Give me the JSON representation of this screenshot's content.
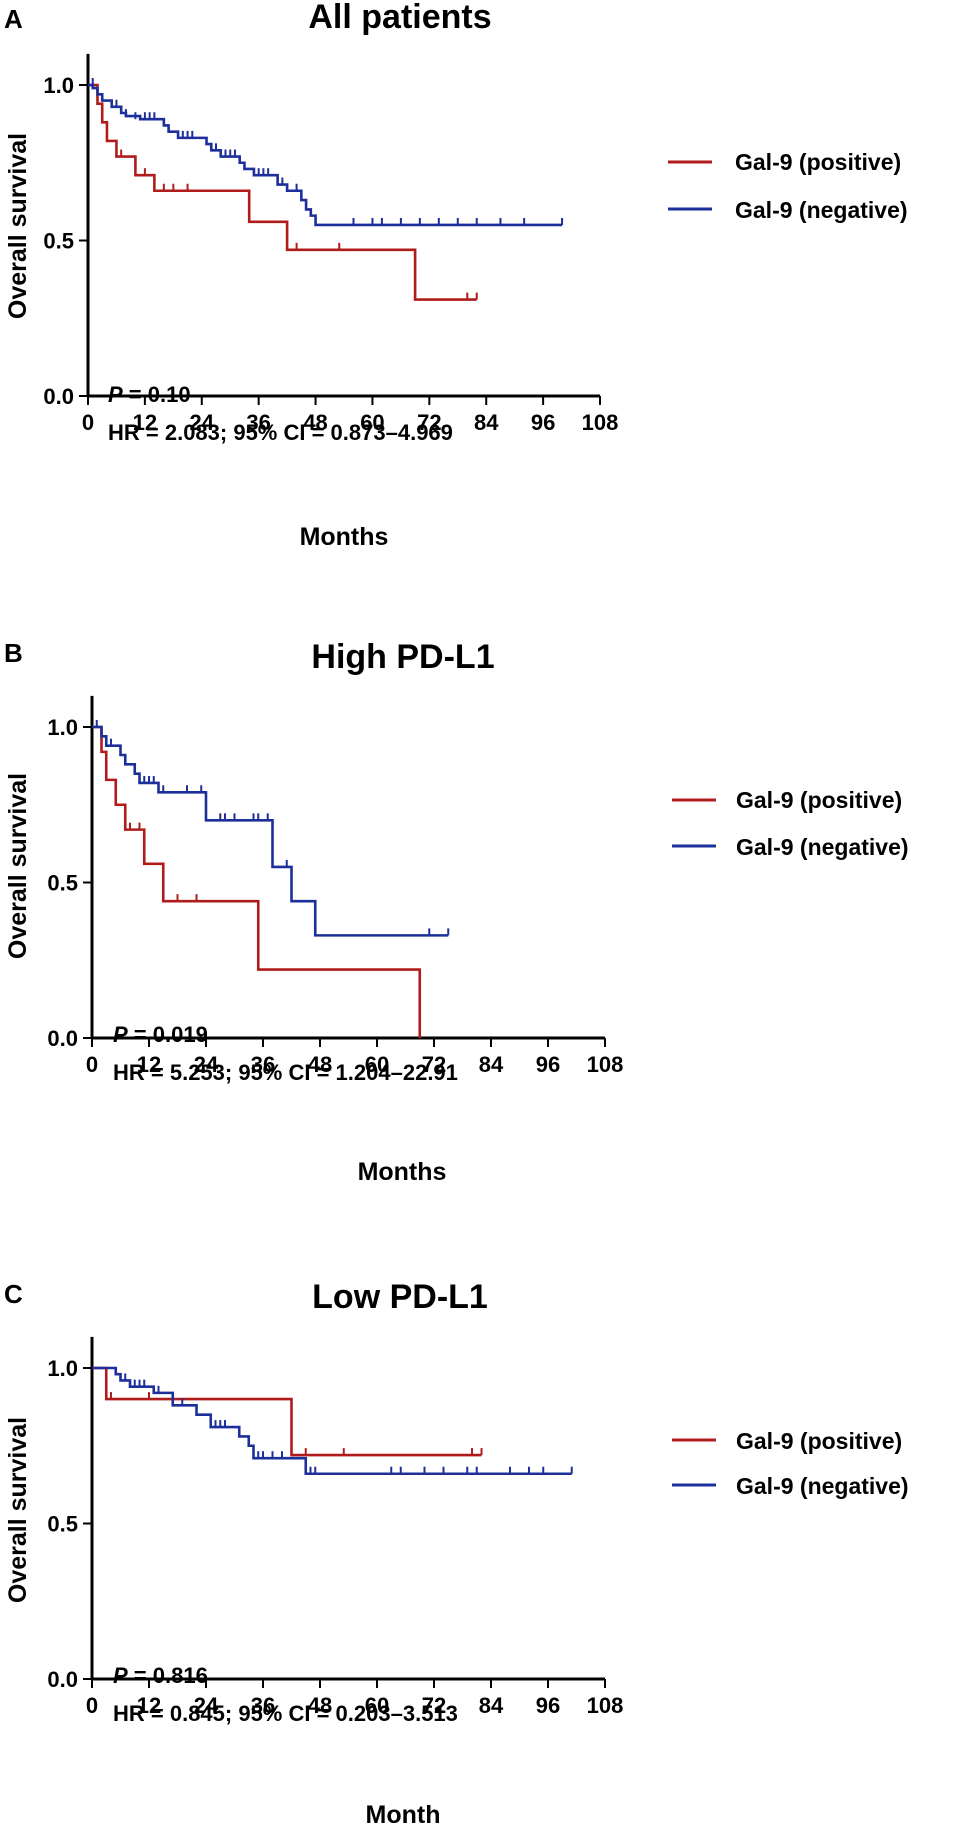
{
  "colors": {
    "positive": "#b01c1c",
    "negative": "#1c2f9a",
    "axis": "#000000"
  },
  "chart_data": [
    {
      "type": "line",
      "panel": "A",
      "title": "All patients",
      "xlabel": "Months",
      "ylabel": "Overall survival",
      "xlim": [
        0,
        108
      ],
      "ylim": [
        0,
        1.1
      ],
      "xticks": [
        "0",
        "12",
        "24",
        "36",
        "48",
        "60",
        "72",
        "84",
        "96",
        "108"
      ],
      "yticks": [
        "0.0",
        "0.5",
        "1.0"
      ],
      "p_prefix": "P",
      "p_value": " = 0.10",
      "hr_text": "HR = 2.083; 95% CI = 0.873–4.969",
      "series": [
        {
          "name": "Gal-9 (positive)",
          "color": "#b01c1c",
          "steps": [
            [
              0,
              1.0
            ],
            [
              2,
              0.94
            ],
            [
              3,
              0.88
            ],
            [
              4,
              0.82
            ],
            [
              6,
              0.77
            ],
            [
              10,
              0.71
            ],
            [
              14,
              0.66
            ],
            [
              34,
              0.56
            ],
            [
              42,
              0.47
            ],
            [
              69,
              0.31
            ],
            [
              82,
              0.31
            ]
          ],
          "censor": [
            [
              7,
              0.77
            ],
            [
              12,
              0.71
            ],
            [
              16,
              0.66
            ],
            [
              18,
              0.66
            ],
            [
              21,
              0.66
            ],
            [
              44,
              0.47
            ],
            [
              53,
              0.47
            ],
            [
              80,
              0.31
            ],
            [
              82,
              0.31
            ]
          ]
        },
        {
          "name": "Gal-9 (negative)",
          "color": "#1c2f9a",
          "steps": [
            [
              0,
              1.0
            ],
            [
              1,
              0.99
            ],
            [
              2,
              0.97
            ],
            [
              3,
              0.95
            ],
            [
              5,
              0.93
            ],
            [
              7,
              0.91
            ],
            [
              8,
              0.9
            ],
            [
              11,
              0.89
            ],
            [
              16,
              0.87
            ],
            [
              17,
              0.85
            ],
            [
              19,
              0.83
            ],
            [
              25,
              0.81
            ],
            [
              26,
              0.79
            ],
            [
              28,
              0.77
            ],
            [
              32,
              0.75
            ],
            [
              33,
              0.73
            ],
            [
              35,
              0.71
            ],
            [
              40,
              0.68
            ],
            [
              42,
              0.66
            ],
            [
              45,
              0.63
            ],
            [
              46,
              0.6
            ],
            [
              47,
              0.58
            ],
            [
              48,
              0.55
            ],
            [
              100,
              0.55
            ]
          ],
          "censor": [
            [
              1,
              1.0
            ],
            [
              6,
              0.93
            ],
            [
              8,
              0.9
            ],
            [
              10,
              0.89
            ],
            [
              12,
              0.89
            ],
            [
              13,
              0.89
            ],
            [
              14,
              0.89
            ],
            [
              20,
              0.83
            ],
            [
              21,
              0.83
            ],
            [
              22,
              0.83
            ],
            [
              27,
              0.79
            ],
            [
              29,
              0.77
            ],
            [
              30,
              0.77
            ],
            [
              31,
              0.77
            ],
            [
              36,
              0.71
            ],
            [
              37,
              0.71
            ],
            [
              38,
              0.71
            ],
            [
              41,
              0.68
            ],
            [
              44,
              0.66
            ],
            [
              47,
              0.58
            ],
            [
              56,
              0.55
            ],
            [
              60,
              0.55
            ],
            [
              62,
              0.55
            ],
            [
              66,
              0.55
            ],
            [
              70,
              0.55
            ],
            [
              74,
              0.55
            ],
            [
              78,
              0.55
            ],
            [
              82,
              0.55
            ],
            [
              87,
              0.55
            ],
            [
              92,
              0.55
            ],
            [
              100,
              0.55
            ]
          ]
        }
      ]
    },
    {
      "type": "line",
      "panel": "B",
      "title": "High PD-L1",
      "xlabel": "Months",
      "ylabel": "Overall survival",
      "xlim": [
        0,
        108
      ],
      "ylim": [
        0,
        1.1
      ],
      "xticks": [
        "0",
        "12",
        "24",
        "36",
        "48",
        "60",
        "72",
        "84",
        "96",
        "108"
      ],
      "yticks": [
        "0.0",
        "0.5",
        "1.0"
      ],
      "p_prefix": "P",
      "p_value": " = 0.019",
      "hr_text": "HR = 5.253; 95% CI = 1.204–22.91",
      "series": [
        {
          "name": "Gal-9 (positive)",
          "color": "#b01c1c",
          "steps": [
            [
              0,
              1.0
            ],
            [
              2,
              0.92
            ],
            [
              3,
              0.83
            ],
            [
              5,
              0.75
            ],
            [
              7,
              0.67
            ],
            [
              11,
              0.56
            ],
            [
              15,
              0.44
            ],
            [
              35,
              0.22
            ],
            [
              69,
              0.0
            ]
          ],
          "censor": [
            [
              8,
              0.67
            ],
            [
              10,
              0.67
            ],
            [
              18,
              0.44
            ],
            [
              22,
              0.44
            ]
          ]
        },
        {
          "name": "Gal-9 (negative)",
          "color": "#1c2f9a",
          "steps": [
            [
              0,
              1.0
            ],
            [
              2,
              0.97
            ],
            [
              3,
              0.94
            ],
            [
              6,
              0.91
            ],
            [
              7,
              0.88
            ],
            [
              9,
              0.85
            ],
            [
              10,
              0.82
            ],
            [
              14,
              0.79
            ],
            [
              24,
              0.7
            ],
            [
              38,
              0.55
            ],
            [
              42,
              0.44
            ],
            [
              47,
              0.33
            ],
            [
              75,
              0.33
            ]
          ],
          "censor": [
            [
              1,
              1.0
            ],
            [
              4,
              0.94
            ],
            [
              9,
              0.85
            ],
            [
              11,
              0.82
            ],
            [
              12,
              0.82
            ],
            [
              13,
              0.82
            ],
            [
              15,
              0.79
            ],
            [
              20,
              0.79
            ],
            [
              23,
              0.79
            ],
            [
              27,
              0.7
            ],
            [
              28,
              0.7
            ],
            [
              30,
              0.7
            ],
            [
              34,
              0.7
            ],
            [
              35,
              0.7
            ],
            [
              37,
              0.7
            ],
            [
              41,
              0.55
            ],
            [
              47,
              0.33
            ],
            [
              71,
              0.33
            ],
            [
              75,
              0.33
            ]
          ]
        }
      ]
    },
    {
      "type": "line",
      "panel": "C",
      "title": "Low PD-L1",
      "xlabel": "Month",
      "ylabel": "Overall survival",
      "xlim": [
        0,
        108
      ],
      "ylim": [
        0,
        1.1
      ],
      "xticks": [
        "0",
        "12",
        "24",
        "36",
        "48",
        "60",
        "72",
        "84",
        "96",
        "108"
      ],
      "yticks": [
        "0.0",
        "0.5",
        "1.0"
      ],
      "p_prefix": "P",
      "p_value": " = 0.816",
      "hr_text": "HR = 0.845; 95% CI = 0.203–3.513",
      "series": [
        {
          "name": "Gal-9 (positive)",
          "color": "#b01c1c",
          "steps": [
            [
              0,
              1.0
            ],
            [
              3,
              0.9
            ],
            [
              42,
              0.72
            ],
            [
              82,
              0.72
            ]
          ],
          "censor": [
            [
              4,
              0.9
            ],
            [
              12,
              0.9
            ],
            [
              45,
              0.72
            ],
            [
              53,
              0.72
            ],
            [
              80,
              0.72
            ],
            [
              82,
              0.72
            ]
          ]
        },
        {
          "name": "Gal-9 (negative)",
          "color": "#1c2f9a",
          "steps": [
            [
              0,
              1.0
            ],
            [
              5,
              0.98
            ],
            [
              6,
              0.96
            ],
            [
              8,
              0.94
            ],
            [
              13,
              0.92
            ],
            [
              17,
              0.88
            ],
            [
              22,
              0.85
            ],
            [
              25,
              0.81
            ],
            [
              31,
              0.78
            ],
            [
              33,
              0.75
            ],
            [
              34,
              0.71
            ],
            [
              42,
              0.71
            ],
            [
              45,
              0.66
            ],
            [
              101,
              0.66
            ]
          ],
          "censor": [
            [
              7,
              0.96
            ],
            [
              9,
              0.94
            ],
            [
              10,
              0.94
            ],
            [
              11,
              0.94
            ],
            [
              14,
              0.92
            ],
            [
              19,
              0.88
            ],
            [
              26,
              0.81
            ],
            [
              27,
              0.81
            ],
            [
              28,
              0.81
            ],
            [
              35,
              0.71
            ],
            [
              36,
              0.71
            ],
            [
              38,
              0.71
            ],
            [
              40,
              0.71
            ],
            [
              46,
              0.66
            ],
            [
              47,
              0.66
            ],
            [
              63,
              0.66
            ],
            [
              65,
              0.66
            ],
            [
              70,
              0.66
            ],
            [
              74,
              0.66
            ],
            [
              79,
              0.66
            ],
            [
              81,
              0.66
            ],
            [
              88,
              0.66
            ],
            [
              92,
              0.66
            ],
            [
              95,
              0.66
            ],
            [
              101,
              0.66
            ]
          ]
        }
      ]
    }
  ]
}
